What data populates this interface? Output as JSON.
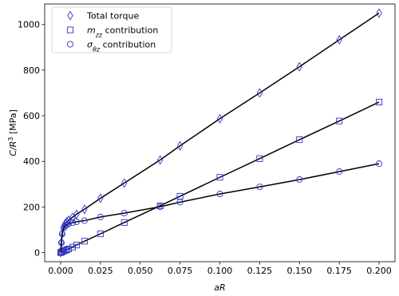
{
  "chart_data": {
    "type": "line",
    "xlabel": "aR",
    "ylabel_main": "C/R",
    "ylabel_exp": "3",
    "ylabel_unit": " [MPa]",
    "xlim": [
      -0.01,
      0.21
    ],
    "ylim": [
      -40,
      1090
    ],
    "xticks": [
      0.0,
      0.025,
      0.05,
      0.075,
      0.1,
      0.125,
      0.15,
      0.175,
      0.2
    ],
    "xtick_labels": [
      "0.000",
      "0.025",
      "0.050",
      "0.075",
      "0.100",
      "0.125",
      "0.150",
      "0.175",
      "0.200"
    ],
    "yticks": [
      0,
      200,
      400,
      600,
      800,
      1000
    ],
    "ytick_labels": [
      "0",
      "200",
      "400",
      "600",
      "800",
      "1000"
    ],
    "grid": false,
    "legend_position": "top-left",
    "marker_color": "#3333cc",
    "line_color": "#000000",
    "series": [
      {
        "name": "Total torque",
        "legend_main": "Total torque",
        "legend_math": "",
        "legend_sub": "",
        "marker": "diamond",
        "x": [
          0.0,
          0.0005,
          0.001,
          0.002,
          0.003,
          0.004,
          0.005,
          0.0075,
          0.01,
          0.015,
          0.025,
          0.04,
          0.0625,
          0.075,
          0.1,
          0.125,
          0.15,
          0.175,
          0.2
        ],
        "y": [
          0,
          45,
          85,
          115,
          128,
          135,
          142,
          155,
          168,
          190,
          238,
          305,
          406,
          468,
          587,
          700,
          815,
          933,
          1050
        ]
      },
      {
        "name": "m_zz contribution",
        "legend_main": " contribution",
        "legend_math": "m",
        "legend_sub": "zz",
        "marker": "square",
        "x": [
          0.0,
          0.0005,
          0.001,
          0.002,
          0.003,
          0.004,
          0.005,
          0.0075,
          0.01,
          0.015,
          0.025,
          0.04,
          0.0625,
          0.075,
          0.1,
          0.125,
          0.15,
          0.175,
          0.2
        ],
        "y": [
          0,
          2,
          4,
          7,
          10,
          13,
          16,
          24,
          33,
          50,
          82,
          132,
          205,
          247,
          330,
          412,
          495,
          577,
          660
        ]
      },
      {
        "name": "sigma_thetaz contribution",
        "legend_main": " contribution",
        "legend_math": "σ",
        "legend_sub": "θz",
        "marker": "circle",
        "x": [
          0.0,
          0.0005,
          0.001,
          0.002,
          0.003,
          0.004,
          0.005,
          0.0075,
          0.01,
          0.015,
          0.025,
          0.04,
          0.0625,
          0.075,
          0.1,
          0.125,
          0.15,
          0.175,
          0.2
        ],
        "y": [
          0,
          43,
          81,
          108,
          118,
          122,
          126,
          131,
          135,
          140,
          156,
          173,
          201,
          221,
          257,
          288,
          320,
          355,
          390
        ]
      }
    ]
  }
}
